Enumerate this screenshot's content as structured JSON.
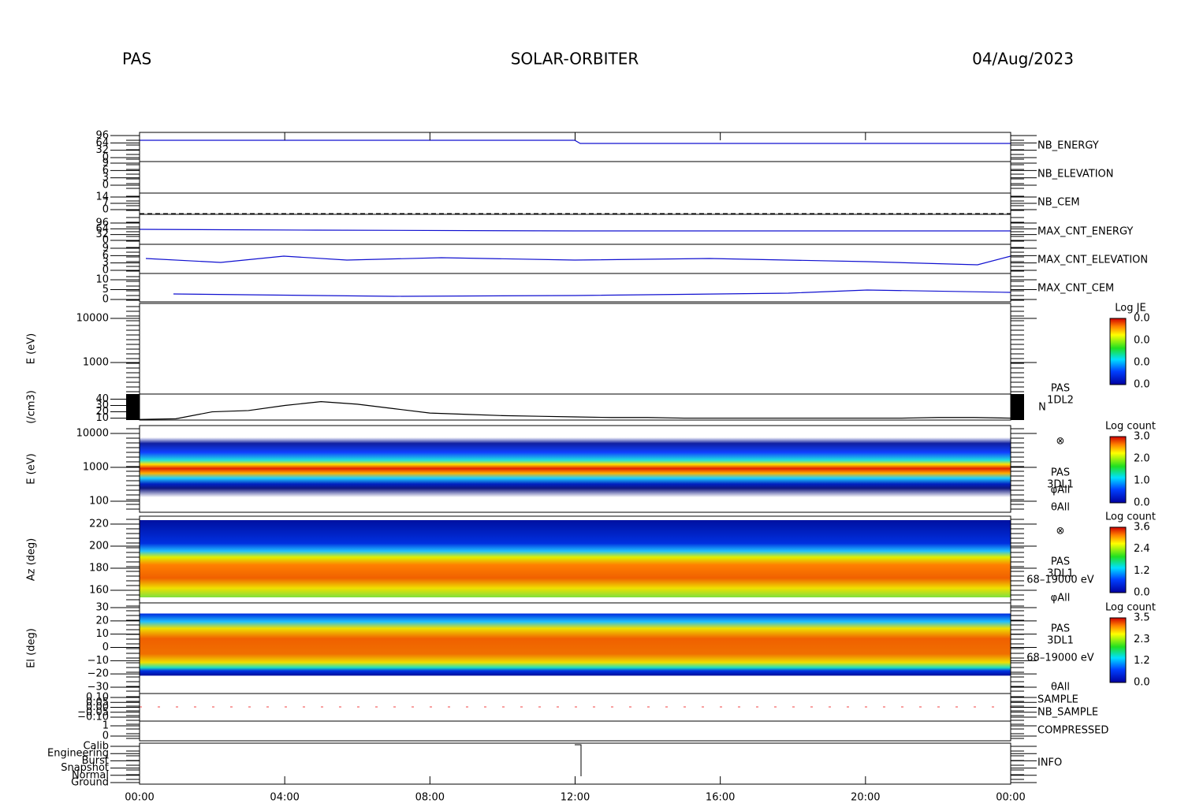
{
  "header": {
    "left": "PAS",
    "center": "SOLAR-ORBITER",
    "right": "04/Aug/2023"
  },
  "panels": [
    {
      "label": "NB_ENERGY",
      "ticks": [
        "96",
        "64",
        "32",
        "0"
      ]
    },
    {
      "label": "NB_ELEVATION",
      "ticks": [
        "9",
        "6",
        "3",
        "0"
      ]
    },
    {
      "label": "NB_CEM",
      "ticks": [
        "14",
        "7",
        "0"
      ]
    },
    {
      "label": "MAX_CNT_ENERGY",
      "ticks": [
        "96",
        "64",
        "32",
        "0"
      ]
    },
    {
      "label": "MAX_CNT_ELEVATION",
      "ticks": [
        "9",
        "6",
        "3",
        "0"
      ]
    },
    {
      "label": "MAX_CNT_CEM",
      "ticks": [
        "10",
        "5",
        "0"
      ]
    },
    {
      "y_label": "E (eV)",
      "ticks": [
        "10000",
        "1000"
      ]
    },
    {
      "y_label": "E (eV)",
      "ticks": [
        "10000",
        "1000",
        "100"
      ],
      "notes": [
        "PAS",
        "3DL1",
        "φAll",
        "θAll"
      ]
    },
    {
      "y_label": "Az (deg)",
      "ticks": [
        "220",
        "200",
        "180",
        "160"
      ],
      "notes": [
        "PAS",
        "3DL1",
        "68–19000 eV",
        "φAll"
      ]
    },
    {
      "y_label": "El (deg)",
      "ticks": [
        "30",
        "20",
        "10",
        "0",
        "−10",
        "−20",
        "−30"
      ],
      "notes": [
        "PAS",
        "3DL1",
        "68–19000 eV",
        "θAll"
      ]
    },
    {
      "label": "SAMPLE",
      "label2": "NB_SAMPLE",
      "ticks": [
        "0.10",
        "0.05",
        "0.00",
        "−0.05",
        "−0.10"
      ]
    },
    {
      "label": "COMPRESSED",
      "ticks": [
        "1",
        "0"
      ]
    },
    {
      "label": "INFO",
      "ticks": [
        "Calib",
        "Engineering",
        "Burst",
        "Snapshot",
        "Normal",
        "Ground"
      ]
    }
  ],
  "density": {
    "y_label": "(/cm3)",
    "notes": [
      "PAS",
      "1DL2",
      "N"
    ],
    "x": [
      0,
      1,
      2,
      3,
      4,
      5,
      6,
      7,
      8,
      9,
      10,
      11,
      12,
      13,
      14,
      15,
      16,
      17,
      18,
      19,
      20,
      21,
      22,
      23,
      24
    ],
    "values": [
      8,
      9,
      20,
      22,
      30,
      36,
      32,
      25,
      18,
      16,
      14,
      13,
      12,
      11,
      11,
      10,
      10,
      10,
      10,
      10,
      10,
      10,
      11,
      11,
      10
    ],
    "xlim": [
      0,
      24
    ],
    "ylim": [
      7,
      48
    ],
    "yticks": [
      10,
      20,
      30,
      40
    ]
  },
  "x_ticks": [
    "00:00",
    "04:00",
    "08:00",
    "12:00",
    "16:00",
    "20:00",
    "00:00"
  ],
  "colorbars": [
    {
      "title": "Log JE",
      "ticks": [
        "0.0",
        "0.0",
        "0.0",
        "0.0"
      ]
    },
    {
      "title": "Log count",
      "ticks": [
        "3.0",
        "2.0",
        "1.0",
        "0.0"
      ]
    },
    {
      "title": "Log count",
      "ticks": [
        "3.6",
        "2.4",
        "1.2",
        "0.0"
      ]
    },
    {
      "title": "Log count",
      "ticks": [
        "3.5",
        "2.3",
        "1.2",
        "0.0"
      ]
    }
  ],
  "symbol": "⊗"
}
